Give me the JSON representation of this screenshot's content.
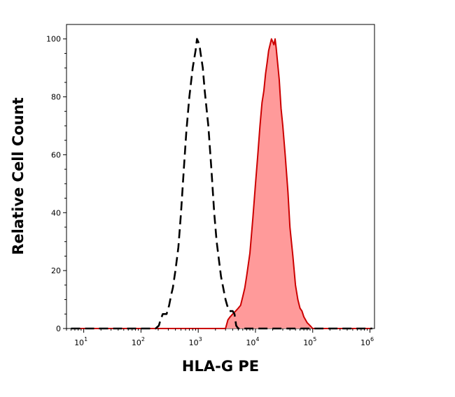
{
  "chart_data": {
    "type": "area",
    "title": "",
    "xlabel": "HLA-G PE",
    "ylabel": "Relative Cell Count",
    "x_scale": "log",
    "xlim": [
      5,
      1200000
    ],
    "ylim": [
      0,
      105
    ],
    "x_ticks": [
      {
        "base": "10",
        "exp": "1",
        "value": 10
      },
      {
        "base": "10",
        "exp": "2",
        "value": 100
      },
      {
        "base": "10",
        "exp": "3",
        "value": 1000
      },
      {
        "base": "10",
        "exp": "4",
        "value": 10000
      },
      {
        "base": "10",
        "exp": "5",
        "value": 100000
      },
      {
        "base": "10",
        "exp": "6",
        "value": 1000000
      }
    ],
    "y_ticks": [
      {
        "label": "0",
        "value": 0
      },
      {
        "label": "20",
        "value": 20
      },
      {
        "label": "40",
        "value": 40
      },
      {
        "label": "60",
        "value": 60
      },
      {
        "label": "80",
        "value": 80
      },
      {
        "label": "100",
        "value": 100
      }
    ],
    "grid": false,
    "legend": "none",
    "series": [
      {
        "style": "dashed-line",
        "color": "#000000",
        "points": [
          [
            6,
            0
          ],
          [
            180,
            0
          ],
          [
            205,
            1
          ],
          [
            220,
            3
          ],
          [
            240,
            5
          ],
          [
            280,
            5
          ],
          [
            310,
            8
          ],
          [
            340,
            12
          ],
          [
            360,
            14
          ],
          [
            400,
            20
          ],
          [
            450,
            28
          ],
          [
            500,
            40
          ],
          [
            560,
            55
          ],
          [
            620,
            68
          ],
          [
            700,
            80
          ],
          [
            800,
            90
          ],
          [
            900,
            96
          ],
          [
            950,
            100
          ],
          [
            1000,
            99
          ],
          [
            1050,
            98
          ],
          [
            1100,
            95
          ],
          [
            1200,
            90
          ],
          [
            1300,
            82
          ],
          [
            1500,
            70
          ],
          [
            1700,
            55
          ],
          [
            1900,
            40
          ],
          [
            2100,
            30
          ],
          [
            2500,
            18
          ],
          [
            3000,
            10
          ],
          [
            3200,
            8
          ],
          [
            3500,
            6
          ],
          [
            3800,
            6
          ],
          [
            4000,
            6
          ],
          [
            4300,
            5
          ],
          [
            4600,
            1
          ],
          [
            5000,
            0
          ],
          [
            30000,
            0
          ],
          [
            1100000,
            0
          ]
        ]
      },
      {
        "style": "filled-area",
        "color": "#cc0000",
        "fill": "#ff9a9a",
        "points": [
          [
            6,
            0
          ],
          [
            3000,
            0
          ],
          [
            3300,
            3
          ],
          [
            3600,
            4
          ],
          [
            4000,
            5
          ],
          [
            4500,
            6
          ],
          [
            5000,
            7
          ],
          [
            5500,
            8
          ],
          [
            6000,
            11
          ],
          [
            6500,
            14
          ],
          [
            7000,
            18
          ],
          [
            8000,
            26
          ],
          [
            9000,
            38
          ],
          [
            10000,
            50
          ],
          [
            11000,
            60
          ],
          [
            12000,
            70
          ],
          [
            13000,
            78
          ],
          [
            14000,
            82
          ],
          [
            15000,
            88
          ],
          [
            16000,
            92
          ],
          [
            17000,
            96
          ],
          [
            18000,
            98
          ],
          [
            19000,
            100
          ],
          [
            20000,
            99
          ],
          [
            21000,
            98
          ],
          [
            22000,
            100
          ],
          [
            23000,
            97
          ],
          [
            24000,
            93
          ],
          [
            26000,
            86
          ],
          [
            28000,
            76
          ],
          [
            30000,
            70
          ],
          [
            33000,
            60
          ],
          [
            37000,
            47
          ],
          [
            40000,
            35
          ],
          [
            45000,
            25
          ],
          [
            50000,
            15
          ],
          [
            55000,
            10
          ],
          [
            60000,
            7
          ],
          [
            65000,
            6
          ],
          [
            70000,
            4
          ],
          [
            75000,
            3
          ],
          [
            80000,
            2
          ],
          [
            90000,
            1
          ],
          [
            100000,
            0
          ],
          [
            1100000,
            0
          ]
        ]
      }
    ]
  }
}
